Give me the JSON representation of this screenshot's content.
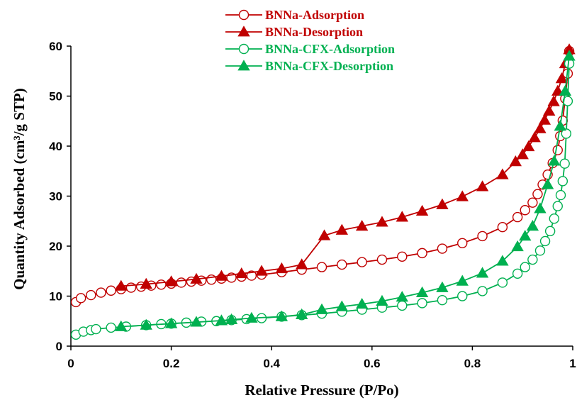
{
  "chart_data": {
    "type": "line",
    "xlabel": "Relative Pressure (P/Po)",
    "ylabel": "Quantity Adsorbed (cm³/g STP)",
    "xlim": [
      0,
      1
    ],
    "ylim": [
      0,
      60
    ],
    "xticks": [
      "0",
      "0.2",
      "0.4",
      "0.6",
      "0.8",
      "1"
    ],
    "yticks": [
      "0",
      "10",
      "20",
      "30",
      "40",
      "50",
      "60"
    ],
    "grid": false,
    "legend_position": "top-center",
    "series": [
      {
        "name": "BNNa-Adsorption",
        "color": "#C00000",
        "marker": "circle-open",
        "x": [
          0.01,
          0.02,
          0.04,
          0.06,
          0.08,
          0.1,
          0.12,
          0.14,
          0.16,
          0.18,
          0.2,
          0.22,
          0.24,
          0.26,
          0.28,
          0.3,
          0.32,
          0.34,
          0.36,
          0.38,
          0.42,
          0.46,
          0.5,
          0.54,
          0.58,
          0.62,
          0.66,
          0.7,
          0.74,
          0.78,
          0.82,
          0.86,
          0.89,
          0.905,
          0.92,
          0.93,
          0.94,
          0.95,
          0.96,
          0.97,
          0.975,
          0.98,
          0.985,
          0.99,
          0.993
        ],
        "y": [
          8.8,
          9.6,
          10.2,
          10.7,
          11.1,
          11.4,
          11.7,
          11.9,
          12.1,
          12.3,
          12.5,
          12.7,
          12.9,
          13.1,
          13.3,
          13.5,
          13.7,
          13.9,
          14.1,
          14.3,
          14.8,
          15.3,
          15.8,
          16.3,
          16.8,
          17.3,
          17.9,
          18.6,
          19.5,
          20.6,
          22.0,
          23.8,
          25.8,
          27.2,
          28.7,
          30.4,
          32.3,
          34.3,
          36.6,
          39.2,
          42.0,
          45.1,
          49.5,
          54.5,
          59.0
        ]
      },
      {
        "name": "BNNa-Desorption",
        "color": "#C00000",
        "marker": "triangle-filled",
        "x": [
          0.993,
          0.985,
          0.978,
          0.97,
          0.962,
          0.953,
          0.944,
          0.935,
          0.924,
          0.912,
          0.9,
          0.886,
          0.86,
          0.82,
          0.78,
          0.74,
          0.7,
          0.66,
          0.62,
          0.58,
          0.54,
          0.505,
          0.46,
          0.42,
          0.38,
          0.34,
          0.3,
          0.25,
          0.2,
          0.15,
          0.1
        ],
        "y": [
          59.3,
          56.5,
          53.5,
          51.0,
          48.9,
          47.0,
          45.2,
          43.5,
          41.7,
          39.9,
          38.3,
          36.9,
          34.3,
          31.9,
          29.9,
          28.3,
          27.0,
          25.8,
          24.8,
          24.0,
          23.2,
          22.1,
          16.3,
          15.5,
          15.0,
          14.5,
          14.0,
          13.4,
          12.9,
          12.4,
          12.0
        ]
      },
      {
        "name": "BNNa-CFX-Adsorption",
        "color": "#00B050",
        "marker": "circle-open",
        "x": [
          0.01,
          0.025,
          0.04,
          0.05,
          0.08,
          0.11,
          0.15,
          0.18,
          0.2,
          0.23,
          0.26,
          0.29,
          0.32,
          0.35,
          0.38,
          0.42,
          0.46,
          0.5,
          0.54,
          0.58,
          0.62,
          0.66,
          0.7,
          0.74,
          0.78,
          0.82,
          0.86,
          0.89,
          0.905,
          0.92,
          0.935,
          0.945,
          0.955,
          0.963,
          0.97,
          0.976,
          0.98,
          0.984,
          0.987,
          0.99,
          0.993
        ],
        "y": [
          2.3,
          2.9,
          3.2,
          3.4,
          3.7,
          3.9,
          4.2,
          4.4,
          4.5,
          4.7,
          4.9,
          5.0,
          5.2,
          5.4,
          5.6,
          5.9,
          6.2,
          6.5,
          6.9,
          7.3,
          7.7,
          8.1,
          8.6,
          9.2,
          10.0,
          11.0,
          12.7,
          14.5,
          15.8,
          17.3,
          19.1,
          21.0,
          23.0,
          25.5,
          28.0,
          30.2,
          33.0,
          36.5,
          42.5,
          49.0,
          56.5
        ]
      },
      {
        "name": "BNNa-CFX-Desorption",
        "color": "#00B050",
        "marker": "triangle-filled",
        "x": [
          0.993,
          0.985,
          0.975,
          0.963,
          0.95,
          0.935,
          0.92,
          0.905,
          0.89,
          0.86,
          0.82,
          0.78,
          0.74,
          0.7,
          0.66,
          0.62,
          0.58,
          0.54,
          0.5,
          0.46,
          0.42,
          0.36,
          0.32,
          0.3,
          0.25,
          0.2,
          0.15,
          0.1
        ],
        "y": [
          58.0,
          51.0,
          44.0,
          37.0,
          32.3,
          27.5,
          24.0,
          22.0,
          19.9,
          17.0,
          14.6,
          13.0,
          11.7,
          10.7,
          9.8,
          9.0,
          8.4,
          7.9,
          7.3,
          6.3,
          5.9,
          5.6,
          5.3,
          5.1,
          4.8,
          4.5,
          4.2,
          3.9
        ]
      }
    ]
  }
}
